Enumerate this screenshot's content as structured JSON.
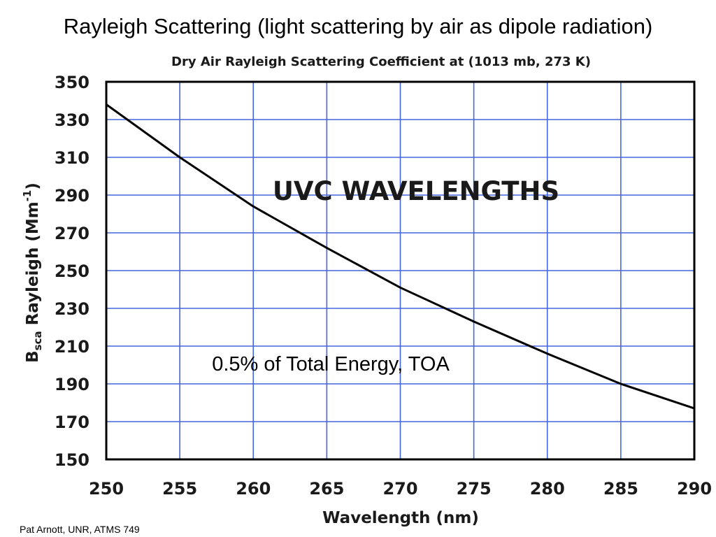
{
  "slide": {
    "title": "Rayleigh Scattering (light scattering by air as dipole radiation)",
    "footer": "Pat Arnott, UNR, ATMS 749"
  },
  "chart_data": {
    "type": "line",
    "title": "Dry Air Rayleigh Scattering Coefficient at (1013 mb, 273 K)",
    "xlabel": "Wavelength (nm)",
    "ylabel": {
      "b_main": "B",
      "b_sub": "sca",
      "mid": " Rayleigh (Mm",
      "sup": "-1",
      "end": ")"
    },
    "xlim": [
      250,
      290
    ],
    "ylim": [
      150,
      350
    ],
    "x_ticks": [
      250,
      255,
      260,
      265,
      270,
      275,
      280,
      285,
      290
    ],
    "y_ticks": [
      150,
      170,
      190,
      210,
      230,
      250,
      270,
      290,
      310,
      330,
      350
    ],
    "grid": true,
    "annotations": {
      "band": "UVC WAVELENGTHS",
      "energy": "0.5% of Total Energy, TOA"
    },
    "series": [
      {
        "x": [
          250,
          255,
          260,
          265,
          270,
          275,
          280,
          285,
          290
        ],
        "y": [
          338,
          310,
          284,
          262,
          241,
          223,
          206,
          190,
          177
        ]
      }
    ],
    "colors": {
      "line": "#000000",
      "grid": "#4466dd",
      "frame": "#000000"
    }
  }
}
